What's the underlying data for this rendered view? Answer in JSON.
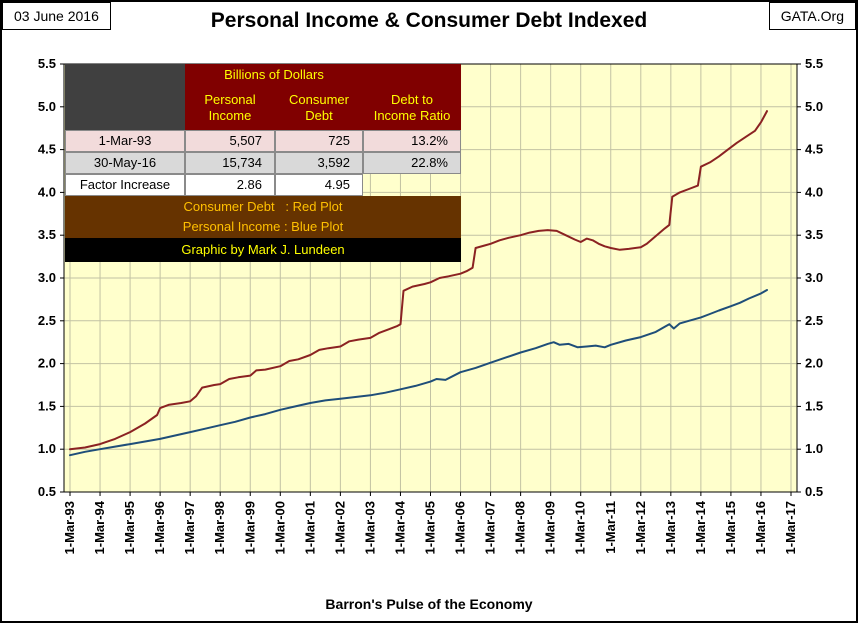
{
  "page": {
    "date_box": "03 June 2016",
    "brand_box": "GATA.Org"
  },
  "colors": {
    "table_header_bg": "#800000",
    "table_header_text": "#FFFF00",
    "table_gray_cell": "#404040",
    "row_pink": "#F2DBDB",
    "row_gray": "#D9D9D9",
    "row_white": "#FFFFFF",
    "legend_bg": "#663300",
    "legend_text": "#FFC000",
    "credit_bg": "#000000",
    "credit_text": "#FFFF00"
  },
  "table": {
    "header_group": "Billions of Dollars",
    "col_headers": [
      "Personal\nIncome",
      "Consumer\nDebt",
      "Debt to\nIncome Ratio"
    ],
    "rows": [
      {
        "label": "1-Mar-93",
        "personal_income": "5,507",
        "consumer_debt": "725",
        "ratio": "13.2%"
      },
      {
        "label": "30-May-16",
        "personal_income": "15,734",
        "consumer_debt": "3,592",
        "ratio": "22.8%"
      },
      {
        "label": "Factor Increase",
        "personal_income": "2.86",
        "consumer_debt": "4.95",
        "ratio": ""
      }
    ],
    "legend": [
      "Consumer Debt   : Red Plot",
      "Personal Income : Blue Plot"
    ],
    "credit": "Graphic by Mark J. Lundeen"
  },
  "chart_data": {
    "type": "line",
    "title": "Personal Income & Consumer Debt Indexed",
    "xlabel": "Barron's Pulse of the Economy",
    "ylabel": "",
    "ylim": [
      0.5,
      5.5
    ],
    "y_ticks": [
      0.5,
      1.0,
      1.5,
      2.0,
      2.5,
      3.0,
      3.5,
      4.0,
      4.5,
      5.0,
      5.5
    ],
    "grid": true,
    "plot_bg": "#FFFFCC",
    "grid_color": "#C2C2A3",
    "x_tick_labels": [
      "1-Mar-93",
      "1-Mar-94",
      "1-Mar-95",
      "1-Mar-96",
      "1-Mar-97",
      "1-Mar-98",
      "1-Mar-99",
      "1-Mar-00",
      "1-Mar-01",
      "1-Mar-02",
      "1-Mar-03",
      "1-Mar-04",
      "1-Mar-05",
      "1-Mar-06",
      "1-Mar-07",
      "1-Mar-08",
      "1-Mar-09",
      "1-Mar-10",
      "1-Mar-11",
      "1-Mar-12",
      "1-Mar-13",
      "1-Mar-14",
      "1-Mar-15",
      "1-Mar-16",
      "1-Mar-17"
    ],
    "x_unit": "years since 1-Mar-93",
    "series": [
      {
        "name": "Consumer Debt",
        "color": "#8B2222",
        "points": [
          [
            0,
            1.0
          ],
          [
            0.5,
            1.02
          ],
          [
            1,
            1.06
          ],
          [
            1.5,
            1.12
          ],
          [
            2,
            1.2
          ],
          [
            2.5,
            1.3
          ],
          [
            2.9,
            1.4
          ],
          [
            3,
            1.48
          ],
          [
            3.3,
            1.52
          ],
          [
            3.7,
            1.54
          ],
          [
            4,
            1.56
          ],
          [
            4.2,
            1.62
          ],
          [
            4.4,
            1.72
          ],
          [
            4.8,
            1.75
          ],
          [
            5,
            1.76
          ],
          [
            5.3,
            1.82
          ],
          [
            5.6,
            1.84
          ],
          [
            6,
            1.86
          ],
          [
            6.2,
            1.92
          ],
          [
            6.5,
            1.93
          ],
          [
            7,
            1.97
          ],
          [
            7.3,
            2.03
          ],
          [
            7.6,
            2.05
          ],
          [
            8,
            2.1
          ],
          [
            8.3,
            2.16
          ],
          [
            8.6,
            2.18
          ],
          [
            9,
            2.2
          ],
          [
            9.3,
            2.26
          ],
          [
            9.6,
            2.28
          ],
          [
            10,
            2.3
          ],
          [
            10.3,
            2.36
          ],
          [
            10.6,
            2.4
          ],
          [
            10.9,
            2.44
          ],
          [
            11.0,
            2.46
          ],
          [
            11.1,
            2.85
          ],
          [
            11.4,
            2.9
          ],
          [
            11.8,
            2.93
          ],
          [
            12,
            2.95
          ],
          [
            12.3,
            3.0
          ],
          [
            12.6,
            3.02
          ],
          [
            13,
            3.05
          ],
          [
            13.2,
            3.08
          ],
          [
            13.4,
            3.12
          ],
          [
            13.5,
            3.35
          ],
          [
            13.8,
            3.38
          ],
          [
            14,
            3.4
          ],
          [
            14.3,
            3.44
          ],
          [
            14.6,
            3.47
          ],
          [
            15,
            3.5
          ],
          [
            15.3,
            3.53
          ],
          [
            15.6,
            3.55
          ],
          [
            15.9,
            3.56
          ],
          [
            16.2,
            3.55
          ],
          [
            16.5,
            3.5
          ],
          [
            16.8,
            3.45
          ],
          [
            17,
            3.42
          ],
          [
            17.2,
            3.46
          ],
          [
            17.4,
            3.44
          ],
          [
            17.6,
            3.4
          ],
          [
            17.8,
            3.37
          ],
          [
            18,
            3.35
          ],
          [
            18.3,
            3.33
          ],
          [
            18.6,
            3.34
          ],
          [
            19,
            3.36
          ],
          [
            19.2,
            3.4
          ],
          [
            19.4,
            3.46
          ],
          [
            19.6,
            3.52
          ],
          [
            19.8,
            3.58
          ],
          [
            19.95,
            3.62
          ],
          [
            20.05,
            3.95
          ],
          [
            20.3,
            4.0
          ],
          [
            20.6,
            4.04
          ],
          [
            20.9,
            4.08
          ],
          [
            21.0,
            4.3
          ],
          [
            21.3,
            4.35
          ],
          [
            21.6,
            4.42
          ],
          [
            21.9,
            4.5
          ],
          [
            22.2,
            4.58
          ],
          [
            22.5,
            4.65
          ],
          [
            22.8,
            4.72
          ],
          [
            23.0,
            4.82
          ],
          [
            23.2,
            4.95
          ]
        ]
      },
      {
        "name": "Personal Income",
        "color": "#1F4E79",
        "points": [
          [
            0,
            0.93
          ],
          [
            0.5,
            0.97
          ],
          [
            1,
            1.0
          ],
          [
            1.5,
            1.03
          ],
          [
            2,
            1.06
          ],
          [
            2.5,
            1.09
          ],
          [
            3,
            1.12
          ],
          [
            3.5,
            1.16
          ],
          [
            4,
            1.2
          ],
          [
            4.5,
            1.24
          ],
          [
            5,
            1.28
          ],
          [
            5.5,
            1.32
          ],
          [
            6,
            1.37
          ],
          [
            6.5,
            1.41
          ],
          [
            7,
            1.46
          ],
          [
            7.5,
            1.5
          ],
          [
            8,
            1.54
          ],
          [
            8.5,
            1.57
          ],
          [
            9,
            1.59
          ],
          [
            9.5,
            1.61
          ],
          [
            10,
            1.63
          ],
          [
            10.5,
            1.66
          ],
          [
            11,
            1.7
          ],
          [
            11.5,
            1.74
          ],
          [
            12,
            1.79
          ],
          [
            12.2,
            1.82
          ],
          [
            12.5,
            1.81
          ],
          [
            13,
            1.9
          ],
          [
            13.5,
            1.95
          ],
          [
            14,
            2.01
          ],
          [
            14.5,
            2.07
          ],
          [
            15,
            2.13
          ],
          [
            15.5,
            2.18
          ],
          [
            15.9,
            2.23
          ],
          [
            16.1,
            2.25
          ],
          [
            16.3,
            2.22
          ],
          [
            16.6,
            2.23
          ],
          [
            16.9,
            2.19
          ],
          [
            17.2,
            2.2
          ],
          [
            17.5,
            2.21
          ],
          [
            17.8,
            2.19
          ],
          [
            18,
            2.22
          ],
          [
            18.5,
            2.27
          ],
          [
            19,
            2.31
          ],
          [
            19.5,
            2.37
          ],
          [
            19.8,
            2.43
          ],
          [
            19.95,
            2.46
          ],
          [
            20.1,
            2.41
          ],
          [
            20.3,
            2.47
          ],
          [
            20.6,
            2.5
          ],
          [
            21,
            2.54
          ],
          [
            21.3,
            2.58
          ],
          [
            21.6,
            2.62
          ],
          [
            22,
            2.67
          ],
          [
            22.3,
            2.71
          ],
          [
            22.6,
            2.76
          ],
          [
            23,
            2.82
          ],
          [
            23.2,
            2.86
          ]
        ]
      }
    ]
  }
}
